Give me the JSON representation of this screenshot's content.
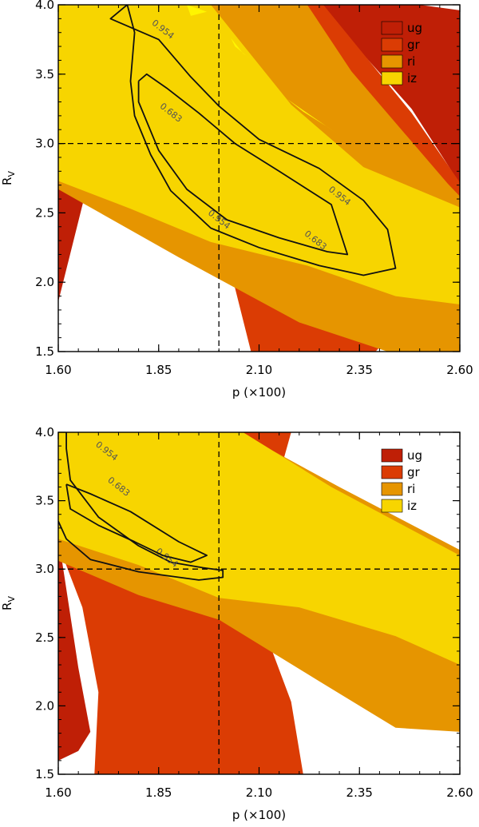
{
  "colors": {
    "ug": "#bf1f06",
    "gr": "#db3c04",
    "ri": "#e69500",
    "iz": "#f7d500",
    "peak": "#fff500"
  },
  "chart_data": [
    {
      "type": "contour",
      "xlabel": "p (×100)",
      "ylabel": "R",
      "ylabel_subscript": "V",
      "xlim": [
        1.6,
        2.6
      ],
      "ylim": [
        1.5,
        4.0
      ],
      "xticks": [
        "1.60",
        "1.85",
        "2.10",
        "2.35",
        "2.60"
      ],
      "yticks": [
        "1.5",
        "2.0",
        "2.5",
        "3.0",
        "3.5",
        "4.0"
      ],
      "grid": false,
      "legend_position": "top-right",
      "legend": [
        "ug",
        "gr",
        "ri",
        "iz"
      ],
      "reference_lines": {
        "x": 2.0,
        "y": 3.0,
        "style": "dashed"
      },
      "bands": [
        {
          "name": "ug",
          "polygon": [
            [
              1.6,
              2.92
            ],
            [
              1.67,
              2.67
            ],
            [
              1.6,
              1.86
            ]
          ]
        },
        {
          "name": "ug",
          "polygon": [
            [
              2.25,
              4.0
            ],
            [
              2.5,
              4.0
            ],
            [
              2.6,
              3.96
            ],
            [
              2.6,
              2.71
            ],
            [
              2.48,
              3.25
            ]
          ]
        },
        {
          "name": "gr",
          "polygon": [
            [
              1.6,
              2.96
            ],
            [
              1.86,
              2.55
            ],
            [
              2.0,
              2.2
            ],
            [
              2.04,
              1.96
            ],
            [
              2.08,
              1.5
            ],
            [
              2.39,
              1.5
            ],
            [
              2.48,
              1.78
            ],
            [
              2.6,
              2.05
            ],
            [
              2.6,
              2.72
            ],
            [
              2.48,
              3.22
            ],
            [
              2.26,
              4.0
            ],
            [
              1.76,
              4.0
            ],
            [
              1.6,
              4.0
            ],
            [
              1.6,
              2.96
            ]
          ]
        },
        {
          "name": "ri",
          "polygon": [
            [
              1.6,
              4.0
            ],
            [
              2.22,
              4.0
            ],
            [
              2.33,
              3.52
            ],
            [
              2.57,
              2.71
            ],
            [
              2.6,
              2.62
            ],
            [
              2.6,
              1.5
            ],
            [
              2.42,
              1.5
            ],
            [
              2.2,
              1.71
            ],
            [
              1.9,
              2.18
            ],
            [
              1.6,
              2.67
            ]
          ]
        },
        {
          "name": "iz",
          "polygon": [
            [
              1.6,
              4.0
            ],
            [
              1.98,
              4.0
            ],
            [
              2.18,
              3.28
            ],
            [
              2.36,
              2.83
            ],
            [
              2.6,
              2.54
            ],
            [
              2.6,
              1.84
            ],
            [
              2.44,
              1.9
            ],
            [
              2.22,
              2.12
            ],
            [
              1.98,
              2.29
            ],
            [
              1.78,
              2.53
            ],
            [
              1.6,
              2.73
            ]
          ]
        },
        {
          "name": "peak",
          "polygon": [
            [
              1.92,
              4.0
            ],
            [
              1.97,
              3.95
            ],
            [
              1.93,
              3.92
            ]
          ]
        },
        {
          "name": "peak",
          "polygon": [
            [
              2.03,
              3.76
            ],
            [
              2.06,
              3.65
            ],
            [
              2.1,
              3.57
            ],
            [
              2.07,
              3.63
            ],
            [
              2.04,
              3.7
            ]
          ]
        },
        {
          "name": "peak",
          "polygon": [
            [
              2.17,
              3.32
            ],
            [
              2.24,
              3.18
            ],
            [
              2.3,
              3.06
            ],
            [
              2.27,
              3.12
            ],
            [
              2.21,
              3.23
            ]
          ]
        }
      ],
      "contours": [
        {
          "level": "0.954",
          "label_at": [
            1.86,
            3.82
          ],
          "path": [
            [
              1.78,
              4.02
            ],
            [
              1.73,
              3.9
            ],
            [
              1.85,
              3.75
            ],
            [
              1.93,
              3.48
            ],
            [
              2.0,
              3.27
            ],
            [
              2.1,
              3.03
            ],
            [
              2.25,
              2.82
            ],
            [
              2.36,
              2.59
            ],
            [
              2.42,
              2.38
            ],
            [
              2.44,
              2.1
            ],
            [
              2.36,
              2.05
            ],
            [
              2.25,
              2.12
            ],
            [
              2.1,
              2.25
            ],
            [
              1.98,
              2.39
            ],
            [
              1.88,
              2.66
            ],
            [
              1.83,
              2.92
            ],
            [
              1.79,
              3.2
            ],
            [
              1.78,
              3.45
            ],
            [
              1.79,
              3.8
            ],
            [
              1.77,
              4.02
            ]
          ]
        },
        {
          "level": "0.954",
          "label_at": [
            2.3,
            2.62
          ],
          "path": []
        },
        {
          "level": "0.954",
          "label_at": [
            2.0,
            2.45
          ],
          "path": []
        },
        {
          "level": "0.683",
          "label_at": [
            1.88,
            3.22
          ],
          "path": [
            [
              1.8,
              3.45
            ],
            [
              1.82,
              3.5
            ],
            [
              1.87,
              3.4
            ],
            [
              1.95,
              3.22
            ],
            [
              2.04,
              3.0
            ],
            [
              2.15,
              2.8
            ],
            [
              2.28,
              2.56
            ],
            [
              2.32,
              2.2
            ],
            [
              2.27,
              2.22
            ],
            [
              2.15,
              2.32
            ],
            [
              2.02,
              2.45
            ],
            [
              1.92,
              2.67
            ],
            [
              1.85,
              2.95
            ],
            [
              1.8,
              3.3
            ],
            [
              1.8,
              3.45
            ]
          ]
        },
        {
          "level": "0.683",
          "label_at": [
            2.24,
            2.3
          ],
          "path": []
        }
      ]
    },
    {
      "type": "contour",
      "xlabel": "p (×100)",
      "ylabel": "R",
      "ylabel_subscript": "V",
      "xlim": [
        1.6,
        2.6
      ],
      "ylim": [
        1.5,
        4.0
      ],
      "xticks": [
        "1.60",
        "1.85",
        "2.10",
        "2.35",
        "2.60"
      ],
      "yticks": [
        "1.5",
        "2.0",
        "2.5",
        "3.0",
        "3.5",
        "4.0"
      ],
      "grid": false,
      "legend_position": "top-right",
      "legend": [
        "ug",
        "gr",
        "ri",
        "iz"
      ],
      "reference_lines": {
        "x": 2.0,
        "y": 3.0,
        "style": "dashed"
      },
      "bands": [
        {
          "name": "ug",
          "polygon": [
            [
              1.6,
              3.24
            ],
            [
              1.65,
              2.28
            ],
            [
              1.68,
              1.81
            ],
            [
              1.65,
              1.67
            ],
            [
              1.6,
              1.6
            ]
          ]
        },
        {
          "name": "gr",
          "polygon": [
            [
              1.6,
              3.18
            ],
            [
              1.66,
              2.72
            ],
            [
              1.7,
              2.1
            ],
            [
              1.69,
              1.5
            ],
            [
              2.21,
              1.5
            ],
            [
              2.18,
              2.03
            ],
            [
              2.11,
              2.58
            ],
            [
              2.09,
              3.12
            ],
            [
              2.14,
              3.58
            ],
            [
              2.18,
              4.0
            ],
            [
              1.88,
              4.0
            ],
            [
              1.6,
              4.0
            ]
          ]
        },
        {
          "name": "ri",
          "polygon": [
            [
              1.6,
              4.0
            ],
            [
              2.05,
              4.0
            ],
            [
              2.3,
              3.6
            ],
            [
              2.6,
              3.14
            ],
            [
              2.6,
              1.81
            ],
            [
              2.44,
              1.84
            ],
            [
              2.25,
              2.18
            ],
            [
              2.0,
              2.63
            ],
            [
              1.8,
              2.81
            ],
            [
              1.6,
              3.06
            ]
          ]
        },
        {
          "name": "iz",
          "polygon": [
            [
              1.6,
              4.0
            ],
            [
              2.06,
              4.0
            ],
            [
              2.28,
              3.6
            ],
            [
              2.6,
              3.1
            ],
            [
              2.6,
              2.3
            ],
            [
              2.44,
              2.51
            ],
            [
              2.2,
              2.72
            ],
            [
              2.0,
              2.79
            ],
            [
              1.8,
              3.03
            ],
            [
              1.6,
              3.22
            ]
          ]
        }
      ],
      "contours": [
        {
          "level": "0.954",
          "label_at": [
            1.72,
            3.86
          ],
          "path": [
            [
              1.62,
              4.02
            ],
            [
              1.62,
              3.88
            ],
            [
              1.63,
              3.65
            ],
            [
              1.7,
              3.38
            ],
            [
              1.8,
              3.17
            ],
            [
              1.88,
              3.05
            ],
            [
              1.96,
              3.01
            ],
            [
              2.01,
              2.99
            ],
            [
              2.01,
              2.94
            ],
            [
              1.95,
              2.92
            ],
            [
              1.8,
              2.98
            ],
            [
              1.68,
              3.07
            ],
            [
              1.62,
              3.22
            ],
            [
              1.6,
              3.35
            ]
          ]
        },
        {
          "level": "0.954",
          "label_at": [
            1.87,
            3.08
          ],
          "path": []
        },
        {
          "level": "0.683",
          "label_at": [
            1.75,
            3.6
          ],
          "path": [
            [
              1.62,
              3.62
            ],
            [
              1.68,
              3.55
            ],
            [
              1.78,
              3.42
            ],
            [
              1.9,
              3.2
            ],
            [
              1.97,
              3.1
            ],
            [
              1.93,
              3.05
            ],
            [
              1.86,
              3.1
            ],
            [
              1.79,
              3.2
            ],
            [
              1.7,
              3.32
            ],
            [
              1.63,
              3.44
            ],
            [
              1.62,
              3.62
            ]
          ]
        }
      ]
    }
  ]
}
